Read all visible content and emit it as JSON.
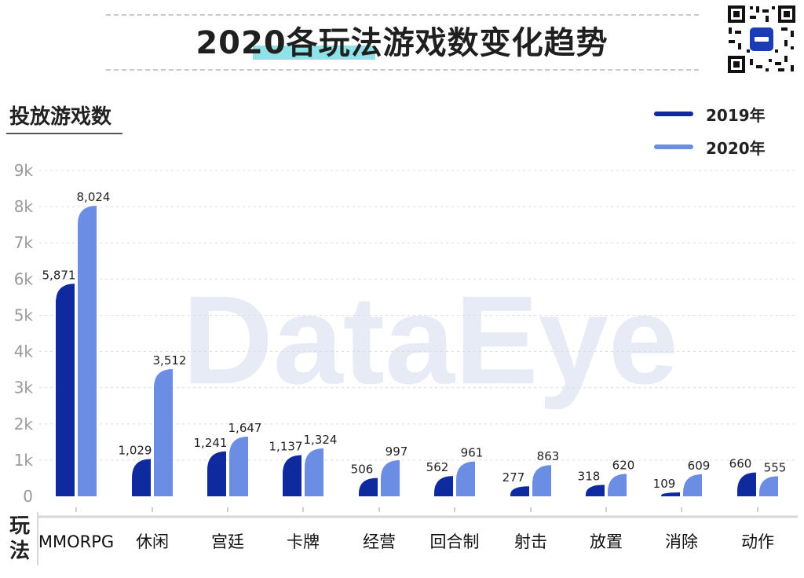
{
  "title": "2020各玩法游戏数变化趋势",
  "section_title": "投放游戏数",
  "x_axis_title": [
    "玩",
    "法"
  ],
  "watermark": "DataEye",
  "colors": {
    "s2019": "#0f2a9e",
    "s2020": "#6b8de3",
    "watermark": "#e6ebf6"
  },
  "legend": [
    {
      "label": "2019年",
      "color": "#0f2a9e"
    },
    {
      "label": "2020年",
      "color": "#6b8de3"
    }
  ],
  "chart_data": {
    "type": "bar",
    "title": "2020各玩法游戏数变化趋势",
    "ylabel": "投放游戏数",
    "xlabel": "玩法",
    "categories": [
      "MMORPG",
      "休闲",
      "宫廷",
      "卡牌",
      "经营",
      "回合制",
      "射击",
      "放置",
      "消除",
      "动作"
    ],
    "series": [
      {
        "name": "2019年",
        "values": [
          5871,
          1029,
          1241,
          1137,
          506,
          562,
          277,
          318,
          109,
          660
        ],
        "labels": [
          "5,871",
          "1,029",
          "1,241",
          "1,137",
          "506",
          "562",
          "277",
          "318",
          "109",
          "660"
        ]
      },
      {
        "name": "2020年",
        "values": [
          8024,
          3512,
          1647,
          1324,
          997,
          961,
          863,
          620,
          609,
          555
        ],
        "labels": [
          "8,024",
          "3,512",
          "1,647",
          "1,324",
          "997",
          "961",
          "863",
          "620",
          "609",
          "555"
        ]
      }
    ],
    "yticks": [
      "0",
      "1k",
      "2k",
      "3k",
      "4k",
      "5k",
      "6k",
      "7k",
      "8k",
      "9k"
    ],
    "ylim": [
      0,
      9000
    ],
    "grid": true,
    "legend_position": "top-right"
  }
}
